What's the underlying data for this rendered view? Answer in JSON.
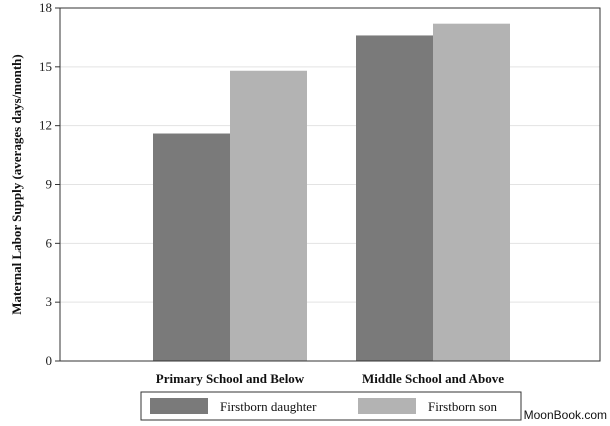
{
  "chart_data": {
    "type": "bar",
    "title": "",
    "xlabel": "",
    "ylabel": "Maternal Labor Supply (averages days/month)",
    "ylim": [
      0,
      18
    ],
    "yticks": [
      0,
      3,
      6,
      9,
      12,
      15,
      18
    ],
    "grid": true,
    "legend_position": "bottom",
    "categories": [
      "Primary School and Below",
      "Middle School and Above"
    ],
    "series": [
      {
        "name": "Firstborn daughter",
        "color": "#7a7a7a",
        "values": [
          11.6,
          16.6
        ]
      },
      {
        "name": "Firstborn son",
        "color": "#b3b3b3",
        "values": [
          14.8,
          17.2
        ]
      }
    ]
  },
  "watermark": "MoonBook.com"
}
